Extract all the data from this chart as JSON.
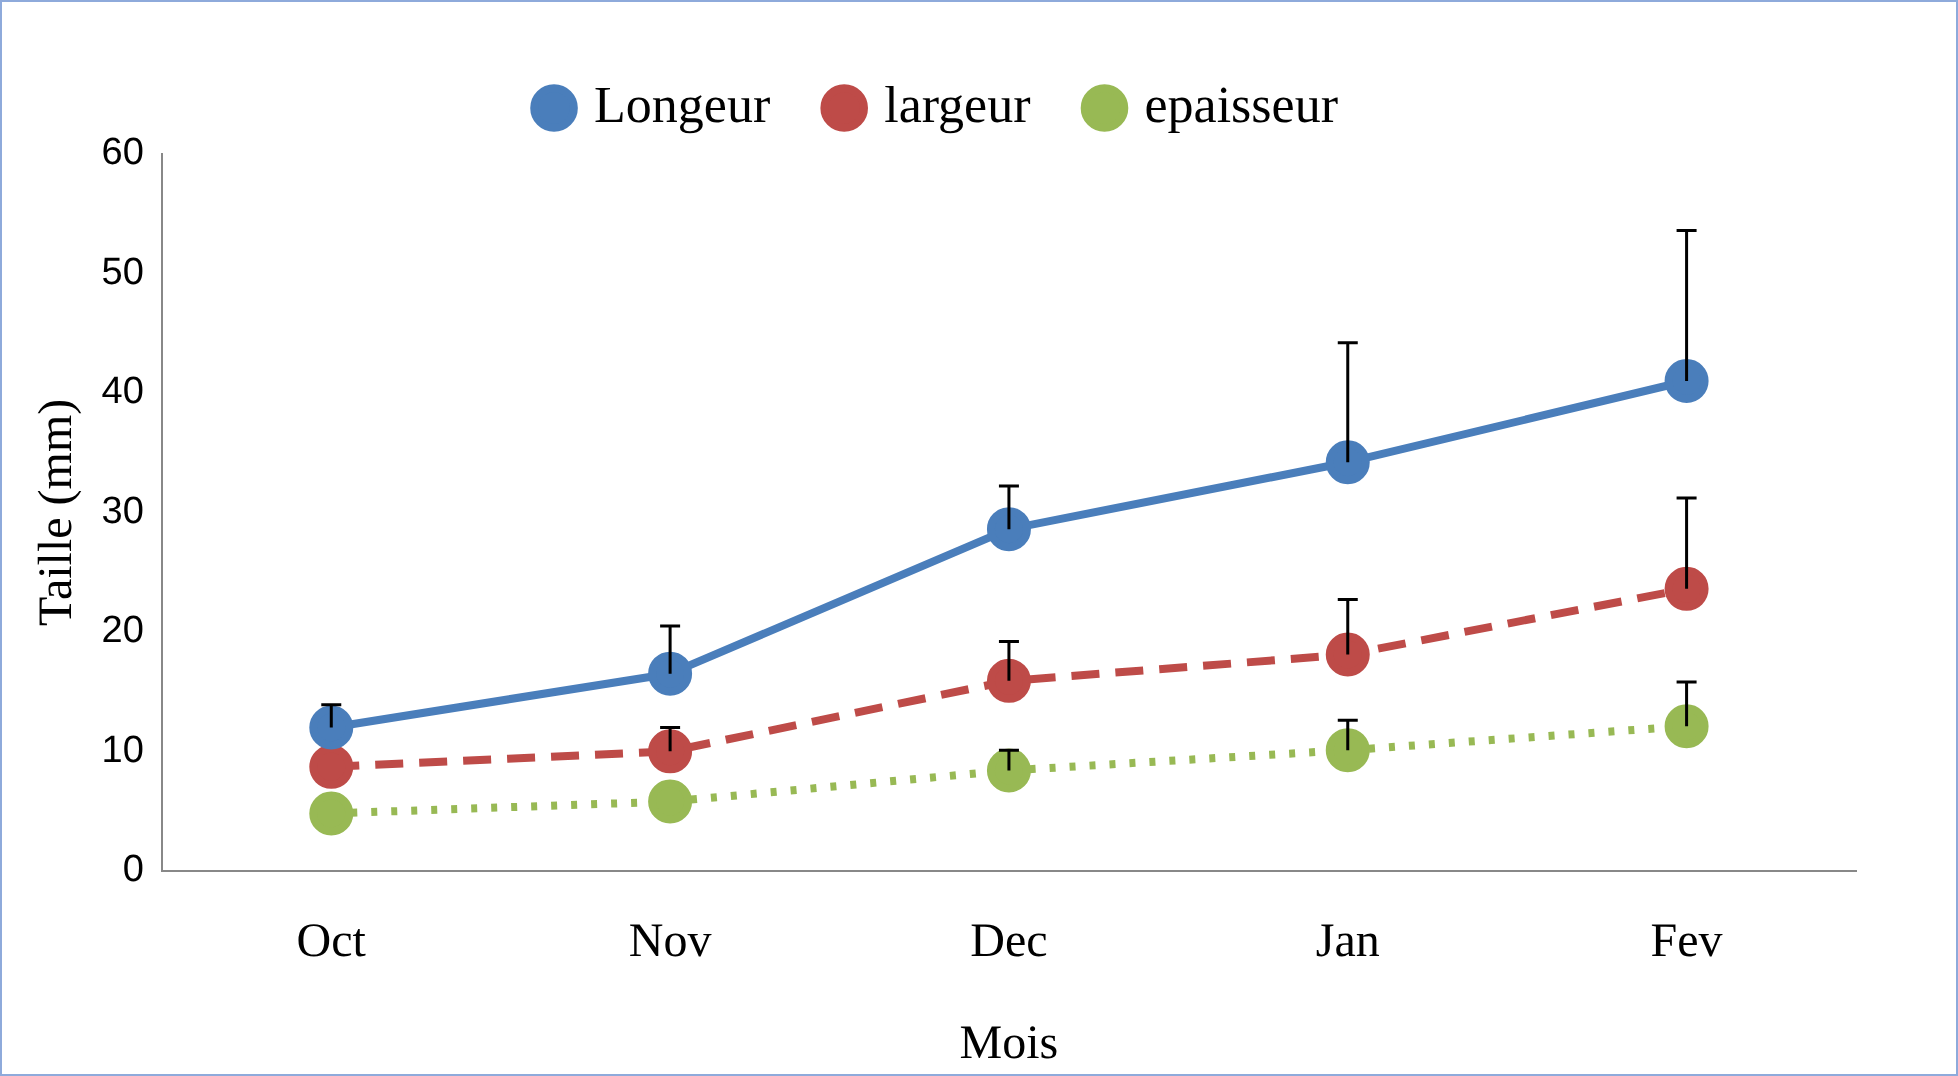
{
  "chart_data": {
    "type": "line",
    "xlabel": "Mois",
    "ylabel": "Taille (mm)",
    "categories": [
      "Oct",
      "Nov",
      "Dec",
      "Jan",
      "Fev"
    ],
    "ylim": [
      0,
      60
    ],
    "yticks": [
      0,
      10,
      20,
      30,
      40,
      50,
      60
    ],
    "grid": false,
    "legend": "top",
    "marker": "circle",
    "series": [
      {
        "name": "Longeur",
        "color": "#4a7ebb",
        "line_style": "solid",
        "values": [
          12.0,
          16.5,
          28.6,
          34.2,
          41.0
        ],
        "errors": [
          [
            12.0,
            13.9
          ],
          [
            16.5,
            20.5
          ],
          [
            28.6,
            32.2
          ],
          [
            34.2,
            44.2
          ],
          [
            41.0,
            53.6
          ]
        ]
      },
      {
        "name": "largeur",
        "color": "#be4b48",
        "line_style": "dashed",
        "values": [
          8.7,
          10.0,
          15.9,
          18.1,
          23.6
        ],
        "errors": [
          null,
          [
            10.0,
            12.0
          ],
          [
            15.9,
            19.2
          ],
          [
            18.1,
            22.7
          ],
          [
            23.6,
            31.2
          ]
        ]
      },
      {
        "name": "epaisseur",
        "color": "#98b954",
        "line_style": "dotted",
        "values": [
          4.8,
          5.8,
          8.4,
          10.1,
          12.1
        ],
        "errors": [
          null,
          null,
          [
            8.4,
            10.1
          ],
          [
            10.1,
            12.6
          ],
          [
            12.1,
            15.8
          ]
        ]
      }
    ]
  }
}
